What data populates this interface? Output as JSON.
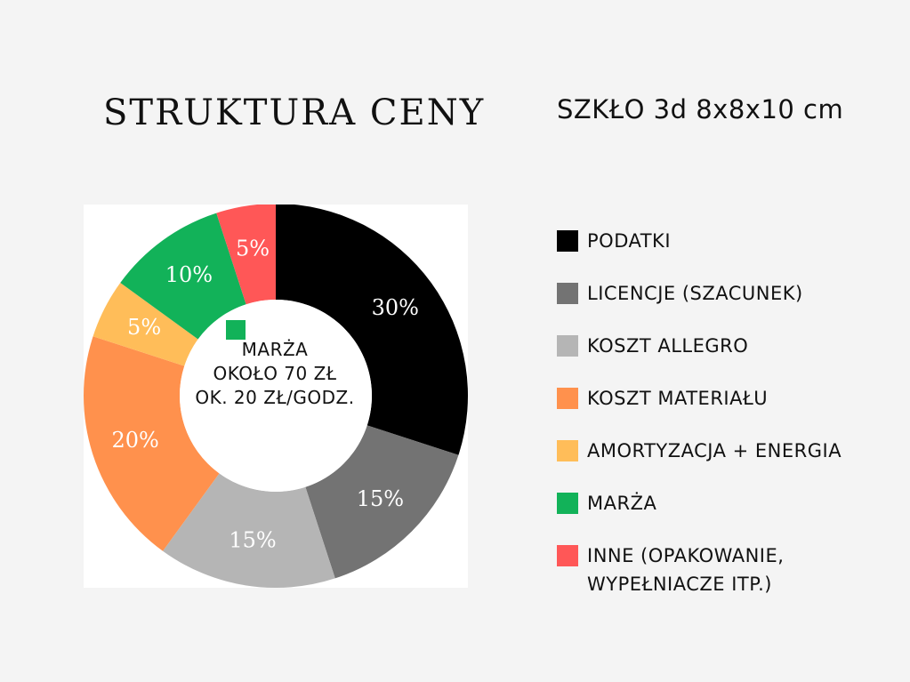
{
  "title": "STRUKTURA CENY",
  "subtitle": "SZKŁO 3d 8x8x10 cm",
  "center_note": {
    "lines": [
      "MARŻA",
      "OKOŁO 70 ZŁ",
      "OK. 20 ZŁ/GODZ."
    ],
    "swatch_color": "#12b259"
  },
  "chart_data": {
    "type": "pie",
    "donut": true,
    "categories": [
      "PODATKI",
      "LICENCJE (SZACUNEK)",
      "KOSZT ALLEGRO",
      "KOSZT MATERIAŁU",
      "AMORTYZACJA + ENERGIA",
      "MARŻA",
      "INNE (OPAKOWANIE,\nWYPEŁNIACZE ITP.)"
    ],
    "values": [
      30,
      15,
      15,
      20,
      5,
      10,
      5
    ],
    "labels": [
      "30%",
      "15%",
      "15%",
      "20%",
      "5%",
      "10%",
      "5%"
    ],
    "colors": [
      "#000000",
      "#737373",
      "#b5b5b5",
      "#ff914d",
      "#ffbd59",
      "#12b259",
      "#ff5757"
    ],
    "legend": "right"
  }
}
